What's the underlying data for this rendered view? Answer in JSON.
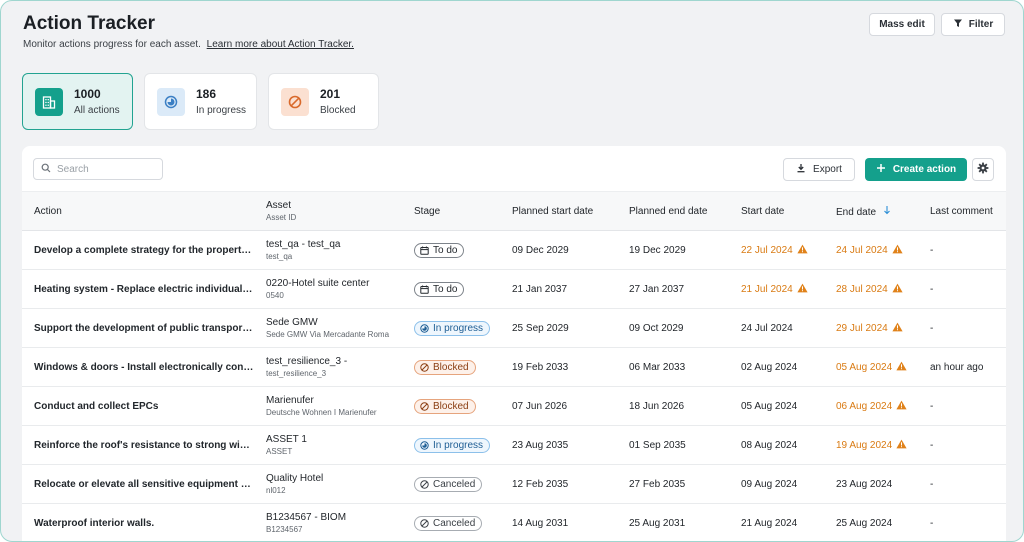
{
  "header": {
    "title": "Action Tracker",
    "subtitle": "Monitor actions progress for each asset.",
    "learn_more": "Learn more about Action Tracker.",
    "mass_edit": "Mass edit",
    "filter": "Filter"
  },
  "kpis": [
    {
      "count": "1000",
      "label": "All actions",
      "icon": "building-icon",
      "color": "#14a08c",
      "active": true
    },
    {
      "count": "186",
      "label": "In progress",
      "icon": "progress-circle-icon",
      "color": "#3b7fc4",
      "active": false
    },
    {
      "count": "201",
      "label": "Blocked",
      "icon": "blocked-icon",
      "color": "#d9692b",
      "active": false
    }
  ],
  "toolbar": {
    "search_placeholder": "Search",
    "export": "Export",
    "create_action": "Create action"
  },
  "columns": {
    "action": "Action",
    "asset": "Asset",
    "asset_sub": "Asset ID",
    "stage": "Stage",
    "planned_start": "Planned start date",
    "planned_end": "Planned end date",
    "start": "Start date",
    "end": "End date",
    "last_comment": "Last comment"
  },
  "colors": {
    "accent": "#14a08c",
    "late": "#d97a12"
  },
  "rows": [
    {
      "action": "Develop a complete strategy for the property …",
      "asset": "test_qa - test_qa",
      "asset_id": "test_qa",
      "stage": "To do",
      "stage_type": "todo",
      "planned_start": "09 Dec 2029",
      "planned_end": "19 Dec 2029",
      "start": "22 Jul 2024",
      "start_late": true,
      "end": "24 Jul 2024",
      "end_late": true,
      "comment": "-"
    },
    {
      "action": "Heating system - Replace electric individual h…",
      "asset": "0220-Hotel suite center",
      "asset_id": "0540",
      "stage": "To do",
      "stage_type": "todo",
      "planned_start": "21 Jan 2037",
      "planned_end": "27 Jan 2037",
      "start": "21 Jul 2024",
      "start_late": true,
      "end": "28 Jul 2024",
      "end_late": true,
      "comment": "-"
    },
    {
      "action": "Support the development of public transport (…",
      "asset": "Sede GMW",
      "asset_id": "Sede GMW Via Mercadante Roma",
      "stage": "In progress",
      "stage_type": "progress",
      "planned_start": "25 Sep 2029",
      "planned_end": "09 Oct 2029",
      "start": "24 Jul 2024",
      "start_late": false,
      "end": "29 Jul 2024",
      "end_late": true,
      "comment": "-"
    },
    {
      "action": "Windows & doors - Install electronically contro…",
      "asset": "test_resilience_3 -",
      "asset_id": "test_resilience_3",
      "stage": "Blocked",
      "stage_type": "blocked",
      "planned_start": "19 Feb 2033",
      "planned_end": "06 Mar 2033",
      "start": "02 Aug 2024",
      "start_late": false,
      "end": "05 Aug 2024",
      "end_late": true,
      "comment": "an hour ago"
    },
    {
      "action": "Conduct and collect EPCs",
      "asset": "Marienufer",
      "asset_id": "Deutsche Wohnen I Marienufer",
      "stage": "Blocked",
      "stage_type": "blocked",
      "planned_start": "07 Jun 2026",
      "planned_end": "18 Jun 2026",
      "start": "05 Aug 2024",
      "start_late": false,
      "end": "06 Aug 2024",
      "end_late": true,
      "comment": "-"
    },
    {
      "action": "Reinforce the roof's resistance to strong winds.",
      "asset": "ASSET 1",
      "asset_id": "ASSET",
      "stage": "In progress",
      "stage_type": "progress",
      "planned_start": "23 Aug 2035",
      "planned_end": "01 Sep 2035",
      "start": "08 Aug 2024",
      "start_late": false,
      "end": "19 Aug 2024",
      "end_late": true,
      "comment": "-"
    },
    {
      "action": "Relocate or elevate all sensitive equipment or …",
      "asset": "Quality Hotel",
      "asset_id": "nl012",
      "stage": "Canceled",
      "stage_type": "canceled",
      "planned_start": "12 Feb 2035",
      "planned_end": "27 Feb 2035",
      "start": "09 Aug 2024",
      "start_late": false,
      "end": "23 Aug 2024",
      "end_late": false,
      "comment": "-"
    },
    {
      "action": "Waterproof interior walls.",
      "asset": "B1234567 - BIOM",
      "asset_id": "B1234567",
      "stage": "Canceled",
      "stage_type": "canceled",
      "planned_start": "14 Aug 2031",
      "planned_end": "25 Aug 2031",
      "start": "21 Aug 2024",
      "start_late": false,
      "end": "25 Aug 2024",
      "end_late": false,
      "comment": "-"
    }
  ]
}
